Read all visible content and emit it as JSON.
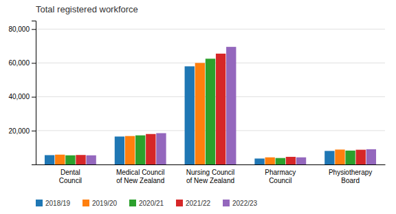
{
  "chart_data": {
    "type": "bar",
    "title": "Total registered workforce",
    "categories": [
      "Dental\nCouncil",
      "Medical Council\nof New Zealand",
      "Nursing Council\nof New Zealand",
      "Pharmacy\nCouncil",
      "Physiotherapy\nBoard"
    ],
    "series": [
      {
        "name": "2018/19",
        "values": [
          5500,
          16500,
          58000,
          3500,
          8000
        ]
      },
      {
        "name": "2019/20",
        "values": [
          5800,
          16800,
          60000,
          4200,
          8800
        ]
      },
      {
        "name": "2020/21",
        "values": [
          5400,
          17200,
          62500,
          3800,
          8200
        ]
      },
      {
        "name": "2021/22",
        "values": [
          5600,
          18000,
          65500,
          4500,
          8700
        ]
      },
      {
        "name": "2022/23",
        "values": [
          5400,
          18500,
          69500,
          4200,
          9000
        ]
      }
    ],
    "ylim": [
      0,
      85000
    ],
    "yticks": [
      {
        "value": 20000,
        "label": "20,000"
      },
      {
        "value": 40000,
        "label": "40,000"
      },
      {
        "value": 60000,
        "label": "60,000"
      },
      {
        "value": 80000,
        "label": "80,000"
      }
    ],
    "grid": true,
    "legend": "bottom"
  }
}
